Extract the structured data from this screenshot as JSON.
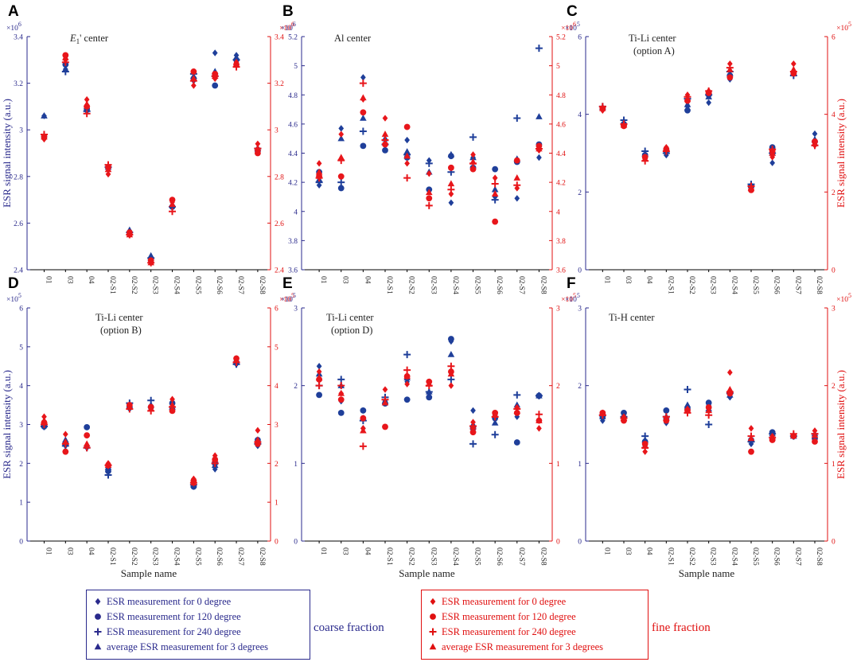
{
  "colors": {
    "coarse": "#1f3f9a",
    "fine": "#e8161b",
    "coarse_axis": "#2a2a8c",
    "fine_axis": "#e01010"
  },
  "legend": {
    "coarse": {
      "items": [
        {
          "symbol": "diamond",
          "label": "ESR measurement for 0 degree"
        },
        {
          "symbol": "circle",
          "label": "ESR measurement for 120 degree"
        },
        {
          "symbol": "plus",
          "label": "ESR measurement for 240 degree"
        },
        {
          "symbol": "triangle",
          "label": "average ESR measurement for 3 degrees"
        }
      ],
      "caption": "coarse fraction"
    },
    "fine": {
      "items": [
        {
          "symbol": "diamond",
          "label": "ESR measurement for 0 degree"
        },
        {
          "symbol": "circle",
          "label": "ESR measurement for 120 degree"
        },
        {
          "symbol": "plus",
          "label": "ESR measurement for 240 degree"
        },
        {
          "symbol": "triangle",
          "label": "average ESR measurement for 3 degrees"
        }
      ],
      "caption": "fine fraction"
    }
  },
  "chart_data": [
    {
      "panel": "A",
      "type": "scatter",
      "title": "E1' center",
      "ylabel": "ESR signal intensity (a.u.)",
      "xlabel": "",
      "ylim": [
        2.4,
        3.4
      ],
      "multiplier": "×10^6",
      "ticks": [
        2.4,
        2.6,
        2.8,
        3,
        3.2,
        3.4
      ],
      "tick_labels": [
        "2.4",
        "2.6",
        "2.8",
        "3",
        "3.2",
        "3.4"
      ],
      "categories": [
        "01",
        "03",
        "04",
        "02-S1",
        "02-S2",
        "02-S3",
        "02-S4",
        "02-S5",
        "02-S6",
        "02-S7",
        "02-S8"
      ],
      "coarse": {
        "deg0": [
          3.06,
          3.26,
          3.08,
          2.84,
          2.56,
          2.44,
          2.67,
          3.21,
          3.33,
          3.32,
          2.92
        ],
        "deg120": [
          2.97,
          3.28,
          3.09,
          2.84,
          2.56,
          2.44,
          2.67,
          3.22,
          3.19,
          3.3,
          2.91
        ],
        "deg240": [
          2.98,
          3.25,
          3.08,
          2.84,
          2.56,
          2.45,
          2.67,
          3.24,
          3.23,
          3.3,
          2.92
        ],
        "avg": [
          3.06,
          3.26,
          3.09,
          2.84,
          2.57,
          2.46,
          2.68,
          3.23,
          3.25,
          3.31,
          2.92
        ]
      },
      "fine": {
        "deg0": [
          2.96,
          3.3,
          3.13,
          2.81,
          2.55,
          2.43,
          2.69,
          3.19,
          3.22,
          3.29,
          2.94
        ],
        "deg120": [
          2.97,
          3.32,
          3.1,
          2.84,
          2.56,
          2.44,
          2.7,
          3.25,
          3.24,
          3.28,
          2.9
        ],
        "deg240": [
          2.98,
          3.29,
          3.07,
          2.85,
          2.55,
          2.43,
          2.65,
          3.21,
          3.23,
          3.27,
          2.92
        ],
        "avg": [
          2.97,
          3.31,
          3.11,
          2.83,
          2.55,
          2.43,
          2.68,
          3.22,
          3.23,
          3.28,
          2.92
        ]
      }
    },
    {
      "panel": "B",
      "type": "scatter",
      "title": "Al center",
      "ylabel": "",
      "xlabel": "",
      "ylim": [
        3.6,
        5.2
      ],
      "multiplier": "×10^6",
      "ticks": [
        3.6,
        3.8,
        4,
        4.2,
        4.4,
        4.6,
        4.8,
        5,
        5.2
      ],
      "tick_labels": [
        "3.6",
        "3.8",
        "4",
        "4.2",
        "4.4",
        "4.6",
        "4.8",
        "5",
        "5.2"
      ],
      "categories": [
        "01",
        "03",
        "04",
        "02-S1",
        "02-S2",
        "02-S3",
        "02-S4",
        "02-S5",
        "02-S6",
        "02-S7",
        "02-S8"
      ],
      "coarse": {
        "deg0": [
          4.18,
          4.57,
          4.92,
          4.49,
          4.49,
          4.35,
          4.06,
          4.37,
          4.1,
          4.09,
          4.37
        ],
        "deg120": [
          4.27,
          4.16,
          4.45,
          4.42,
          4.37,
          4.15,
          4.38,
          4.3,
          4.29,
          4.34,
          4.46
        ],
        "deg240": [
          4.2,
          4.2,
          4.55,
          4.46,
          4.39,
          4.33,
          4.27,
          4.51,
          4.08,
          4.64,
          5.12
        ],
        "avg": [
          4.22,
          4.5,
          4.64,
          4.5,
          4.41,
          4.27,
          4.39,
          4.37,
          4.15,
          4.36,
          4.65
        ]
      },
      "fine": {
        "deg0": [
          4.33,
          4.53,
          4.77,
          4.64,
          4.33,
          4.26,
          4.12,
          4.39,
          4.23,
          4.16,
          4.42
        ],
        "deg120": [
          4.24,
          4.24,
          4.68,
          4.46,
          4.58,
          4.09,
          4.3,
          4.29,
          3.93,
          4.35,
          4.45
        ],
        "deg240": [
          4.23,
          4.35,
          4.88,
          4.49,
          4.23,
          4.04,
          4.15,
          4.33,
          4.19,
          4.18,
          4.43
        ],
        "avg": [
          4.27,
          4.37,
          4.78,
          4.53,
          4.38,
          4.13,
          4.19,
          4.34,
          4.12,
          4.23,
          4.43
        ]
      }
    },
    {
      "panel": "C",
      "type": "scatter",
      "title": "Ti-Li center",
      "title2": "(option A)",
      "ylabel": "",
      "xlabel": "",
      "ylim": [
        0,
        6
      ],
      "multiplier": "×10^5",
      "ticks": [
        0,
        2,
        4,
        6
      ],
      "tick_labels": [
        "0",
        "2",
        "4",
        "6"
      ],
      "categories": [
        "01",
        "03",
        "04",
        "02-S1",
        "02-S2",
        "02-S3",
        "02-S4",
        "02-S5",
        "02-S6",
        "02-S7",
        "02-S8"
      ],
      "coarse": {
        "deg0": [
          4.15,
          3.72,
          2.9,
          2.95,
          4.2,
          4.3,
          4.9,
          2.1,
          2.75,
          5.05,
          3.5
        ],
        "deg120": [
          4.15,
          3.75,
          2.95,
          3.1,
          4.1,
          4.5,
          5.0,
          2.15,
          3.15,
          5.05,
          3.3
        ],
        "deg240": [
          4.2,
          3.85,
          3.05,
          3.0,
          4.4,
          4.5,
          5.1,
          2.2,
          3.0,
          5.0,
          3.2
        ],
        "avg": [
          4.18,
          3.78,
          2.98,
          3.05,
          4.25,
          4.45,
          5.05,
          2.17,
          3.0,
          5.05,
          3.35
        ]
      },
      "fine": {
        "deg0": [
          4.1,
          3.7,
          2.85,
          3.15,
          4.5,
          4.6,
          5.3,
          2.1,
          2.9,
          5.3,
          3.2
        ],
        "deg120": [
          4.15,
          3.7,
          2.9,
          3.1,
          4.35,
          4.55,
          4.95,
          2.05,
          3.05,
          5.05,
          3.3
        ],
        "deg240": [
          4.2,
          3.75,
          2.8,
          3.05,
          4.45,
          4.6,
          5.2,
          2.15,
          3.1,
          5.1,
          3.2
        ],
        "avg": [
          4.15,
          3.72,
          2.85,
          3.1,
          4.4,
          4.6,
          5.15,
          2.1,
          3.0,
          5.15,
          3.25
        ]
      }
    },
    {
      "panel": "D",
      "type": "scatter",
      "title": "Ti-Li center",
      "title2": "(option B)",
      "ylabel": "ESR signal intensity (a.u.)",
      "xlabel": "Sample name",
      "ylim": [
        0,
        6
      ],
      "multiplier": "×10^5",
      "ticks": [
        0,
        1,
        2,
        3,
        4,
        5,
        6
      ],
      "tick_labels": [
        "0",
        "1",
        "2",
        "3",
        "4",
        "5",
        "6"
      ],
      "categories": [
        "01",
        "03",
        "04",
        "02-S1",
        "02-S2",
        "02-S3",
        "02-S4",
        "02-S5",
        "02-S6",
        "02-S7",
        "02-S8"
      ],
      "coarse": {
        "deg0": [
          3.0,
          2.45,
          2.4,
          1.85,
          3.4,
          3.4,
          3.4,
          1.4,
          1.85,
          4.55,
          2.45
        ],
        "deg120": [
          2.95,
          2.5,
          2.93,
          1.8,
          3.45,
          3.45,
          3.55,
          1.4,
          2.0,
          4.6,
          2.6
        ],
        "deg240": [
          2.95,
          2.45,
          2.4,
          1.7,
          3.55,
          3.62,
          3.45,
          1.45,
          2.0,
          4.55,
          2.5
        ],
        "avg": [
          3.0,
          2.6,
          2.45,
          1.9,
          3.5,
          3.5,
          3.45,
          1.45,
          1.95,
          4.6,
          2.6
        ]
      },
      "fine": {
        "deg0": [
          3.2,
          2.75,
          2.45,
          2.0,
          3.45,
          3.45,
          3.65,
          1.6,
          2.2,
          4.7,
          2.85
        ],
        "deg120": [
          3.05,
          2.3,
          2.72,
          1.95,
          3.5,
          3.45,
          3.35,
          1.55,
          2.1,
          4.7,
          2.5
        ],
        "deg240": [
          3.0,
          2.5,
          2.4,
          1.95,
          3.4,
          3.35,
          3.45,
          1.5,
          2.0,
          4.6,
          2.55
        ],
        "avg": [
          3.1,
          2.55,
          2.5,
          1.95,
          3.45,
          3.4,
          3.5,
          1.5,
          2.1,
          4.65,
          2.6
        ]
      }
    },
    {
      "panel": "E",
      "type": "scatter",
      "title": "Ti-Li center",
      "title2": "(option D)",
      "ylabel": "",
      "xlabel": "Sample name",
      "ylim": [
        0,
        3
      ],
      "multiplier": "×10^5",
      "ticks": [
        0,
        1,
        2,
        3
      ],
      "tick_labels": [
        "0",
        "1",
        "2",
        "3"
      ],
      "categories": [
        "01",
        "03",
        "04",
        "02-S1",
        "02-S2",
        "02-S3",
        "02-S4",
        "02-S5",
        "02-S6",
        "02-S7",
        "02-S8"
      ],
      "coarse": {
        "deg0": [
          2.25,
          1.8,
          1.45,
          1.8,
          2.05,
          1.9,
          2.57,
          1.68,
          1.62,
          1.6,
          1.87
        ],
        "deg120": [
          1.88,
          1.65,
          1.68,
          1.77,
          1.82,
          1.85,
          2.6,
          1.45,
          1.58,
          1.27,
          1.87
        ],
        "deg240": [
          2.0,
          2.08,
          1.55,
          1.85,
          2.4,
          1.92,
          2.08,
          1.25,
          1.37,
          1.88,
          1.87
        ],
        "avg": [
          2.15,
          2.0,
          1.58,
          1.8,
          2.1,
          1.92,
          2.4,
          1.5,
          1.52,
          1.75,
          1.87
        ]
      },
      "fine": {
        "deg0": [
          2.18,
          1.9,
          1.45,
          1.95,
          2.02,
          2.05,
          2.0,
          1.53,
          1.62,
          1.72,
          1.45
        ],
        "deg120": [
          2.08,
          1.82,
          1.58,
          1.47,
          2.12,
          2.05,
          2.18,
          1.4,
          1.65,
          1.65,
          1.55
        ],
        "deg240": [
          2.0,
          2.0,
          1.22,
          1.82,
          2.2,
          2.0,
          2.25,
          1.48,
          1.6,
          1.7,
          1.63
        ],
        "avg": [
          2.1,
          1.9,
          1.42,
          1.78,
          2.12,
          2.02,
          2.15,
          1.47,
          1.62,
          1.67,
          1.55
        ]
      }
    },
    {
      "panel": "F",
      "type": "scatter",
      "title": "Ti-H center",
      "ylabel": "ESR signal intensity (a.u.)",
      "xlabel": "Sample name",
      "ylim": [
        0,
        3
      ],
      "multiplier": "×10^5",
      "ticks": [
        0,
        1,
        2,
        3
      ],
      "tick_labels": [
        "0",
        "1",
        "2",
        "3"
      ],
      "categories": [
        "01",
        "03",
        "04",
        "02-S1",
        "02-S2",
        "02-S3",
        "02-S4",
        "02-S5",
        "02-S6",
        "02-S7",
        "02-S8"
      ],
      "coarse": {
        "deg0": [
          1.55,
          1.6,
          1.22,
          1.52,
          1.72,
          1.75,
          1.85,
          1.25,
          1.32,
          1.35,
          1.35
        ],
        "deg120": [
          1.6,
          1.65,
          1.28,
          1.68,
          1.7,
          1.78,
          1.9,
          1.3,
          1.4,
          1.35,
          1.32
        ],
        "deg240": [
          1.62,
          1.6,
          1.35,
          1.6,
          1.95,
          1.5,
          1.9,
          1.28,
          1.38,
          1.35,
          1.38
        ],
        "avg": [
          1.6,
          1.62,
          1.3,
          1.6,
          1.75,
          1.7,
          1.88,
          1.3,
          1.38,
          1.35,
          1.38
        ]
      },
      "fine": {
        "deg0": [
          1.65,
          1.6,
          1.15,
          1.58,
          1.7,
          1.72,
          2.17,
          1.45,
          1.35,
          1.36,
          1.42
        ],
        "deg120": [
          1.65,
          1.55,
          1.25,
          1.55,
          1.68,
          1.72,
          1.9,
          1.15,
          1.3,
          1.35,
          1.28
        ],
        "deg240": [
          1.62,
          1.58,
          1.2,
          1.6,
          1.65,
          1.62,
          1.92,
          1.35,
          1.33,
          1.38,
          1.38
        ],
        "avg": [
          1.64,
          1.58,
          1.22,
          1.58,
          1.68,
          1.68,
          1.95,
          1.32,
          1.33,
          1.36,
          1.36
        ]
      }
    }
  ]
}
